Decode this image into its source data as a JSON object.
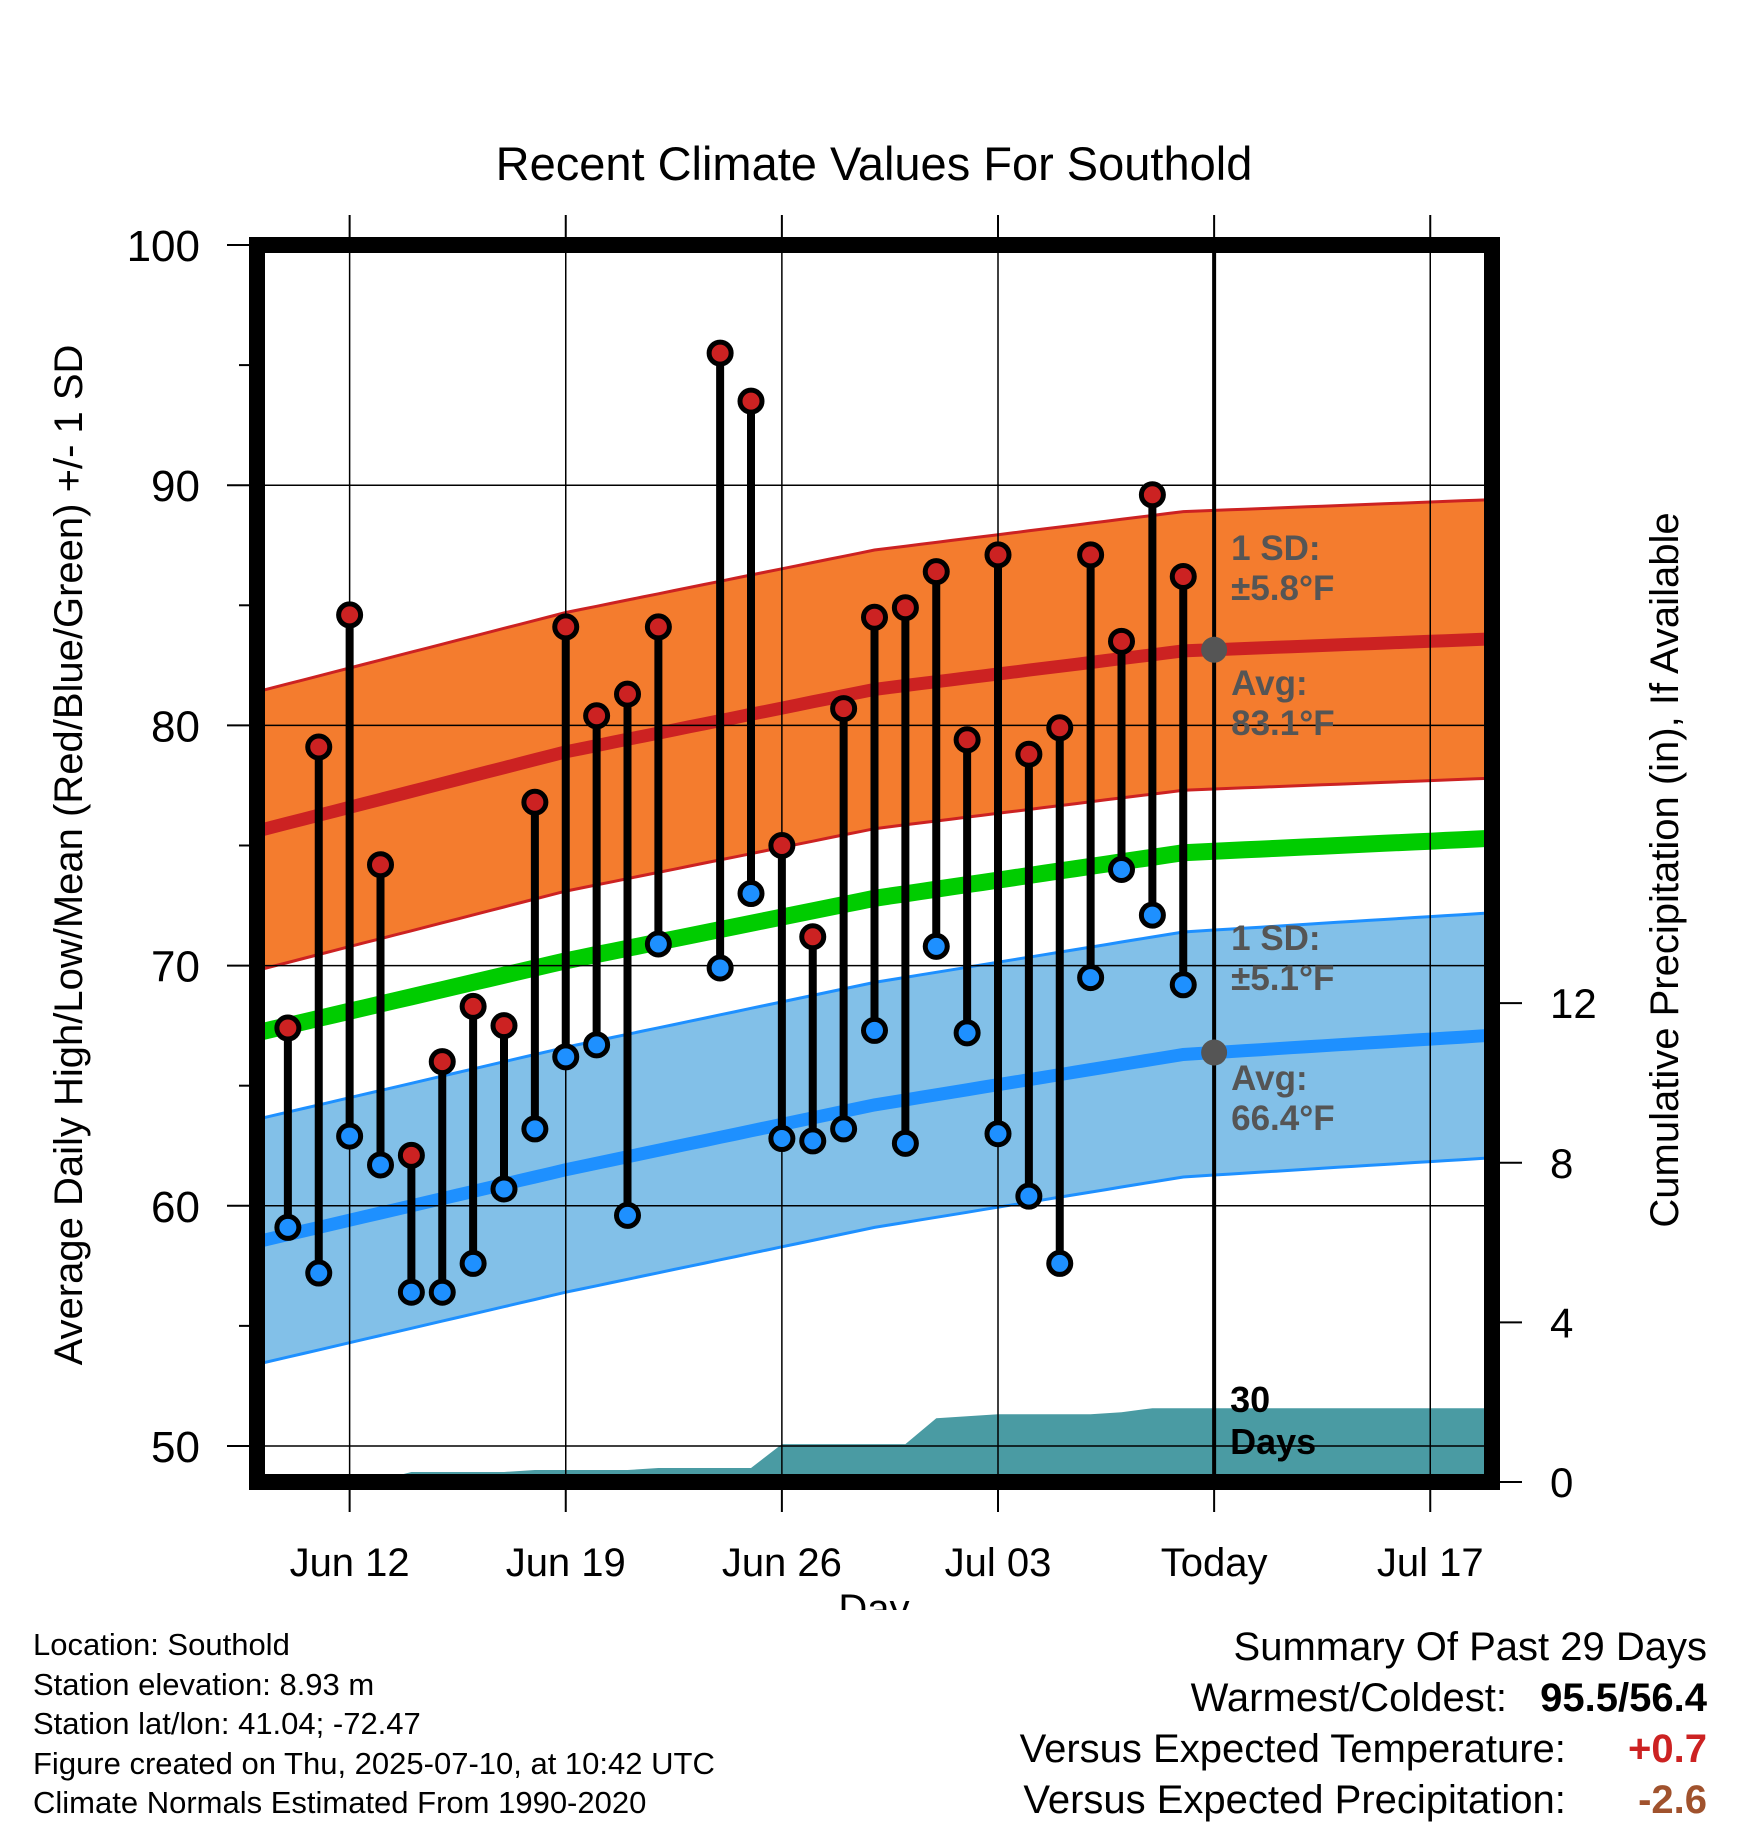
{
  "chart_data": {
    "type": "line",
    "title": "Recent Climate Values For Southold",
    "xlabel": "Day",
    "ylabel_left": "Average Daily High/Low/Mean (Red/Blue/Green) +/- 1 SD",
    "ylabel_right": "Cumulative Precipitation (in), If Available",
    "ylim": [
      48.5,
      100
    ],
    "y_ticks": [
      "50",
      "60",
      "70",
      "80",
      "90",
      "100"
    ],
    "y2lim": [
      0,
      31
    ],
    "y2_ticks": [
      "0",
      "4",
      "8",
      "12"
    ],
    "x_ticks": [
      "Jun 12",
      "Jun 19",
      "Jun 26",
      "Jul 03",
      "Today",
      "Jul 17"
    ],
    "x_tick_days": [
      "2025-06-12",
      "2025-06-19",
      "2025-06-26",
      "2025-07-03",
      "2025-07-10",
      "2025-07-17"
    ],
    "xlim": [
      "2025-06-09",
      "2025-07-19"
    ],
    "today": "2025-07-10",
    "grid": true,
    "colors": {
      "high": "#cc2222",
      "high_band": "#f47c2e",
      "low": "#1e90ff",
      "low_band": "#82c0e8",
      "mean": "#00cc00",
      "precip": "#4a9ba3",
      "annotation": "#555555",
      "positive": "#cc2222",
      "negative": "#a0522d"
    },
    "normals": {
      "dates": [
        "2025-06-09",
        "2025-06-19",
        "2025-06-29",
        "2025-07-09",
        "2025-07-19"
      ],
      "high_avg": [
        75.6,
        78.9,
        81.5,
        83.1,
        83.6
      ],
      "high_sd": 5.8,
      "low_avg": [
        58.5,
        61.5,
        64.2,
        66.3,
        67.1
      ],
      "low_sd": 5.1,
      "mean_avg": [
        67.2,
        70.2,
        72.8,
        74.7,
        75.3
      ]
    },
    "daily": {
      "dates": [
        "2025-06-10",
        "2025-06-11",
        "2025-06-12",
        "2025-06-13",
        "2025-06-14",
        "2025-06-15",
        "2025-06-16",
        "2025-06-17",
        "2025-06-18",
        "2025-06-19",
        "2025-06-20",
        "2025-06-21",
        "2025-06-22",
        "2025-06-24",
        "2025-06-25",
        "2025-06-26",
        "2025-06-27",
        "2025-06-28",
        "2025-06-29",
        "2025-06-30",
        "2025-07-01",
        "2025-07-02",
        "2025-07-03",
        "2025-07-04",
        "2025-07-05",
        "2025-07-06",
        "2025-07-07",
        "2025-07-08",
        "2025-07-09"
      ],
      "high": [
        67.4,
        79.1,
        84.6,
        74.2,
        62.1,
        66.0,
        68.3,
        67.5,
        76.8,
        84.1,
        80.4,
        81.3,
        84.1,
        95.5,
        93.5,
        75.0,
        71.2,
        80.7,
        84.5,
        84.9,
        86.4,
        79.4,
        87.1,
        78.8,
        79.9,
        87.1,
        83.5,
        89.6,
        86.2
      ],
      "low": [
        59.1,
        57.2,
        62.9,
        61.7,
        56.4,
        56.4,
        57.6,
        60.7,
        63.2,
        66.2,
        66.7,
        59.6,
        70.9,
        69.9,
        73.0,
        62.8,
        62.7,
        63.2,
        67.3,
        62.6,
        70.8,
        67.2,
        63.0,
        60.4,
        57.6,
        69.5,
        74.0,
        72.1,
        69.2
      ]
    },
    "precip": {
      "dates": [
        "2025-06-10",
        "2025-06-11",
        "2025-06-12",
        "2025-06-13",
        "2025-06-14",
        "2025-06-15",
        "2025-06-16",
        "2025-06-17",
        "2025-06-18",
        "2025-06-19",
        "2025-06-20",
        "2025-06-21",
        "2025-06-22",
        "2025-06-23",
        "2025-06-24",
        "2025-06-25",
        "2025-06-26",
        "2025-06-27",
        "2025-06-28",
        "2025-06-29",
        "2025-06-30",
        "2025-07-01",
        "2025-07-02",
        "2025-07-03",
        "2025-07-04",
        "2025-07-05",
        "2025-07-06",
        "2025-07-07",
        "2025-07-08",
        "2025-07-09",
        "2025-07-10"
      ],
      "cumulative": [
        0.05,
        0.05,
        0.05,
        0.05,
        0.25,
        0.25,
        0.25,
        0.25,
        0.3,
        0.3,
        0.3,
        0.3,
        0.35,
        0.35,
        0.35,
        0.35,
        0.95,
        0.95,
        0.95,
        0.95,
        0.95,
        1.6,
        1.65,
        1.7,
        1.7,
        1.7,
        1.7,
        1.75,
        1.85,
        1.85,
        1.85
      ]
    },
    "annotations": {
      "high_sd_label": "1 SD:",
      "high_sd_value": "±5.8°F",
      "high_avg_label": "Avg:",
      "high_avg_value": "83.1°F",
      "low_sd_label": "1 SD:",
      "low_sd_value": "±5.1°F",
      "low_avg_label": "Avg:",
      "low_avg_value": "66.4°F",
      "precip_days_count": "30",
      "precip_days_label": "Days"
    }
  },
  "station": {
    "location": "Location: Southold",
    "elevation": "Station elevation: 8.93 m",
    "latlon": "Station lat/lon: 41.04; -72.47",
    "created": "Figure created on Thu, 2025-07-10, at 10:42 UTC",
    "normals": "Climate Normals Estimated From 1990-2020"
  },
  "summary": {
    "title": "Summary Of Past 29 Days",
    "warmest_coldest_label": "Warmest/Coldest:",
    "warmest": "95.5",
    "separator": "/",
    "coldest": "56.4",
    "temp_label": "Versus Expected Temperature:",
    "temp_value": "+0.7",
    "precip_label": "Versus Expected Precipitation:",
    "precip_value": "-2.6"
  }
}
